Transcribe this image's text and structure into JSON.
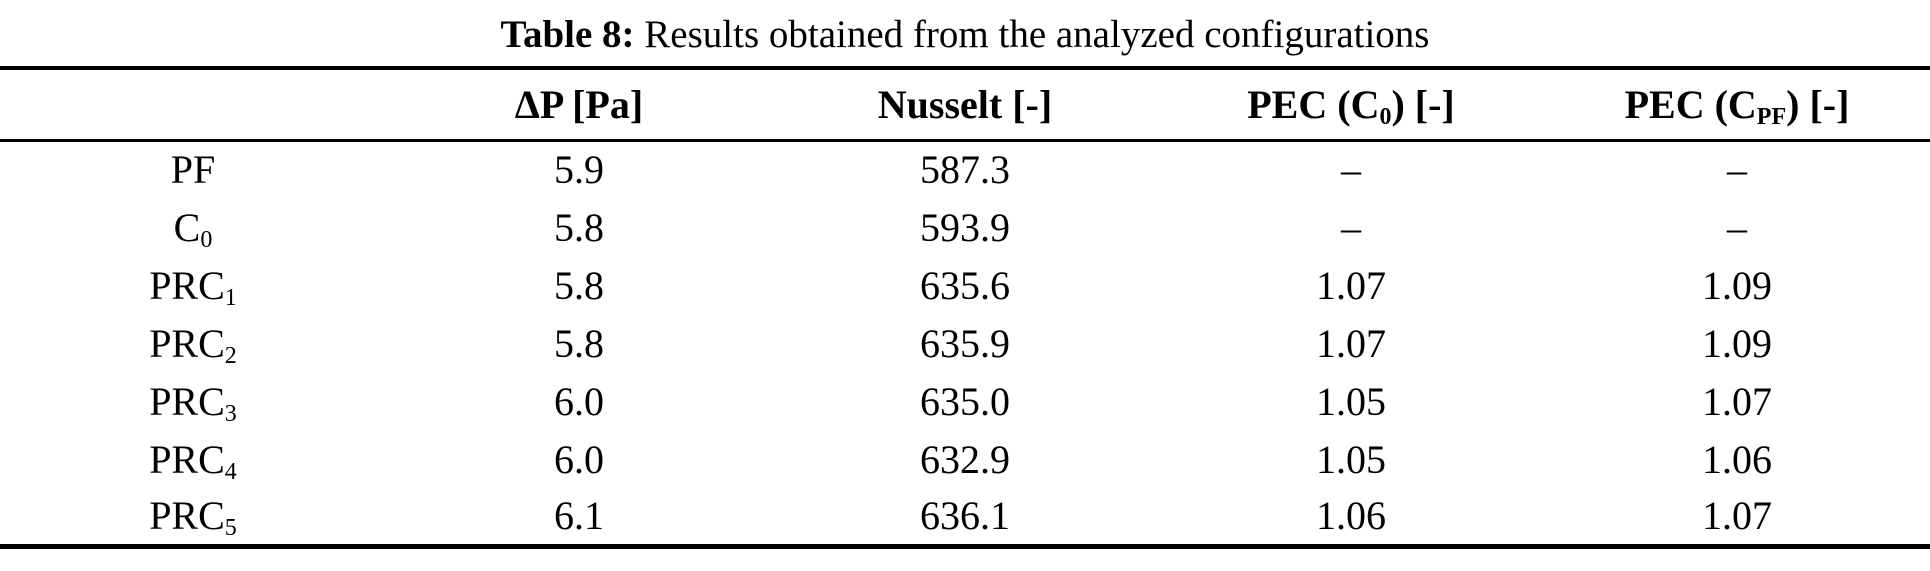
{
  "page": {
    "background_color": "#ffffff",
    "text_color": "#000000",
    "rule_color": "#000000"
  },
  "table": {
    "caption_label": "Table 8:",
    "caption_text": " Results obtained from the analyzed configurations",
    "columns": [
      "",
      "ΔP [Pa]",
      "Nusselt [-]",
      "PEC (C~0~) [-]",
      "PEC (C~PF~) [-]"
    ],
    "rows": [
      {
        "label": "PF",
        "values": [
          "5.9",
          "587.3",
          "–",
          "–"
        ]
      },
      {
        "label": "C~0~",
        "values": [
          "5.8",
          "593.9",
          "–",
          "–"
        ]
      },
      {
        "label": "PRC~1~",
        "values": [
          "5.8",
          "635.6",
          "1.07",
          "1.09"
        ]
      },
      {
        "label": "PRC~2~",
        "values": [
          "5.8",
          "635.9",
          "1.07",
          "1.09"
        ]
      },
      {
        "label": "PRC~3~",
        "values": [
          "6.0",
          "635.0",
          "1.05",
          "1.07"
        ]
      },
      {
        "label": "PRC~4~",
        "values": [
          "6.0",
          "632.9",
          "1.05",
          "1.06"
        ]
      },
      {
        "label": "PRC~5~",
        "values": [
          "6.1",
          "636.1",
          "1.06",
          "1.07"
        ]
      }
    ]
  }
}
